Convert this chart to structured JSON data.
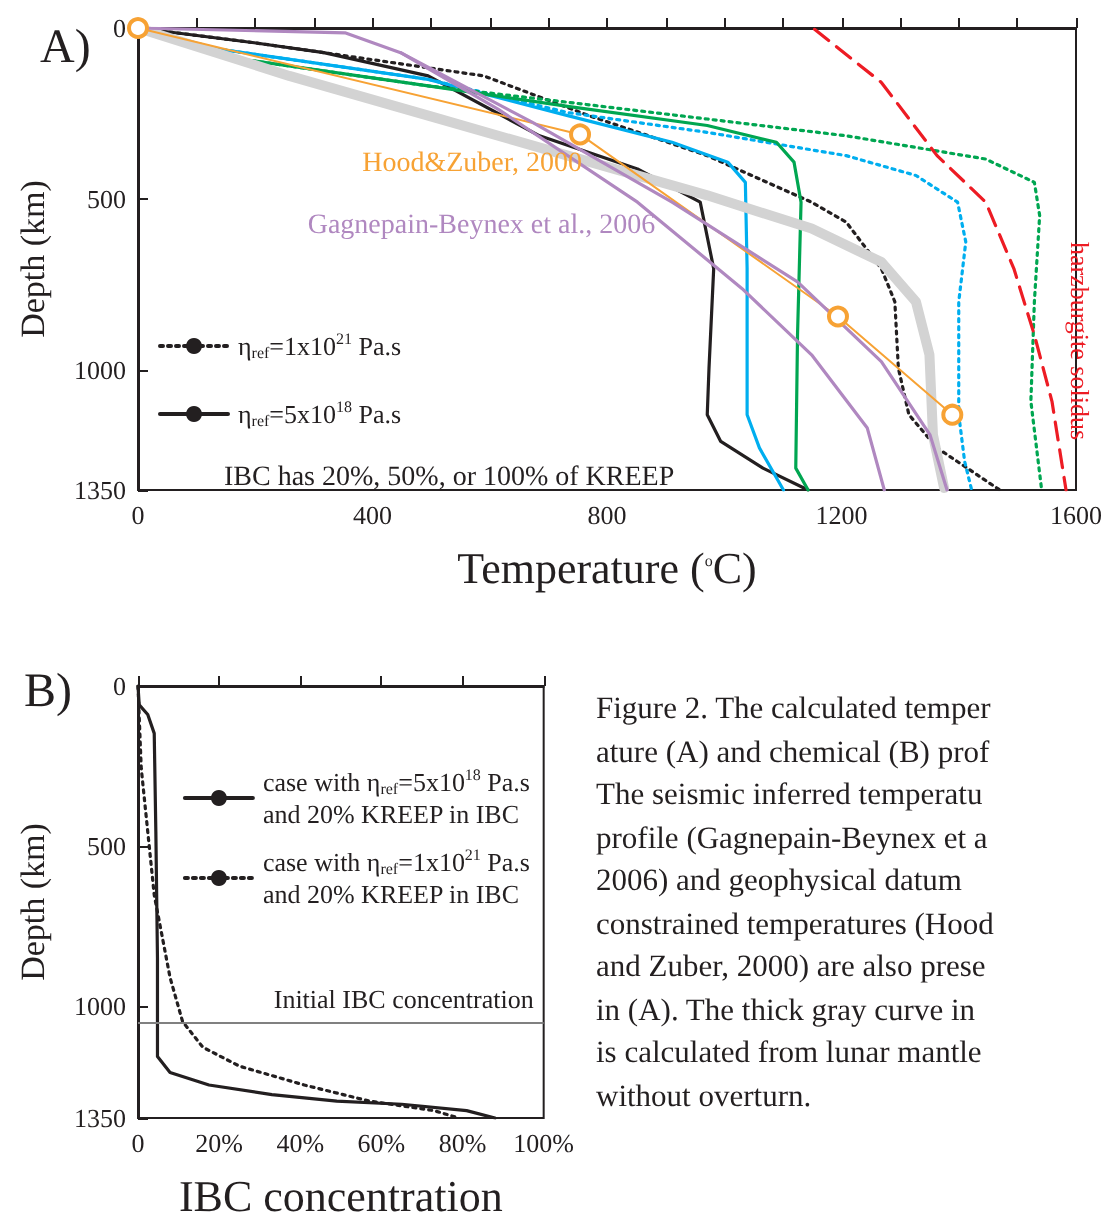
{
  "chart_data": [
    {
      "type": "line",
      "xlabel": "Temperature ($^{o}$C)",
      "ylabel": "Depth (km)",
      "xlim": [
        0,
        1600
      ],
      "ylim": [
        1350,
        0
      ],
      "xticks": [
        0,
        {
          "value": 100,
          "label": null
        },
        {
          "value": 200,
          "label": null
        },
        {
          "value": 300,
          "label": null
        },
        400,
        {
          "value": 500,
          "label": null
        },
        {
          "value": 600,
          "label": null
        },
        {
          "value": 700,
          "label": null
        },
        800,
        {
          "value": 900,
          "label": null
        },
        {
          "value": 1000,
          "label": null
        },
        {
          "value": 1100,
          "label": null
        },
        1200,
        {
          "value": 1300,
          "label": null
        },
        {
          "value": 1400,
          "label": null
        },
        {
          "value": 1500,
          "label": null
        },
        1600
      ],
      "yticks": [
        0,
        500,
        1000,
        1350
      ],
      "legend": "left",
      "marker": "none",
      "line_style": "solid",
      "annotations": [
        "A)",
        "IBC has 20%, 50%, or 100% of KREEP"
      ],
      "series": [
        {
          "name": "η$_{ref}$=1x10$^{21}$ Pa.s",
          "color": "#231f20",
          "line_style": "dotted",
          "x": [
            0,
            198,
            317,
            590,
            769,
            971,
            1149,
            1208,
            1268,
            1291,
            1297,
            1315,
            1363,
            1470
          ],
          "values": [
            0,
            43,
            72,
            140,
            256,
            373,
            509,
            567,
            703,
            800,
            994,
            1130,
            1227,
            1350
          ]
        },
        {
          "name": "η$_{ref}$=5x10$^{18}$ Pa.s",
          "color": "#231f20",
          "x": [
            0,
            198,
            317,
            495,
            685,
            852,
            959,
            982,
            974,
            971,
            994,
            1066,
            1143
          ],
          "values": [
            0,
            43,
            72,
            140,
            315,
            412,
            509,
            703,
            994,
            1130,
            1208,
            1286,
            1350
          ]
        },
        {
          "color": "#00aeef",
          "x": [
            0,
            139,
            495,
            733,
            911,
            1006,
            1036,
            1039,
            1039,
            1060,
            1101
          ],
          "values": [
            0,
            62,
            150,
            256,
            334,
            392,
            451,
            703,
            1130,
            1227,
            1350
          ]
        },
        {
          "color": "#00aeef",
          "line_style": "dotted",
          "x": [
            0,
            139,
            495,
            733,
            971,
            1208,
            1327,
            1398,
            1412,
            1400,
            1400,
            1410,
            1422
          ],
          "values": [
            0,
            62,
            150,
            247,
            305,
            373,
            431,
            509,
            625,
            800,
            1130,
            1266,
            1350
          ]
        },
        {
          "color": "#00a651",
          "x": [
            0,
            139,
            495,
            733,
            971,
            1089,
            1119,
            1131,
            1125,
            1122,
            1143
          ],
          "values": [
            0,
            82,
            169,
            229,
            285,
            334,
            392,
            509,
            897,
            1286,
            1350
          ]
        },
        {
          "color": "#00a651",
          "line_style": "dotted",
          "x": [
            0,
            139,
            495,
            733,
            971,
            1208,
            1446,
            1529,
            1538,
            1529,
            1523,
            1541
          ],
          "values": [
            0,
            82,
            169,
            217,
            266,
            315,
            383,
            451,
            548,
            800,
            1091,
            1344
          ]
        },
        {
          "color": "#d3d3d3",
          "x": [
            0,
            258,
            495,
            733,
            971,
            1149,
            1268,
            1327,
            1350,
            1356,
            1375
          ],
          "values": [
            0,
            140,
            256,
            373,
            489,
            586,
            684,
            800,
            955,
            1189,
            1344
          ]
        },
        {
          "name": "Hood&Zuber, 2000",
          "color": "#f7a234",
          "marker": "circle",
          "x": [
            0,
            754,
            1194,
            1389
          ],
          "values": [
            0,
            311,
            843,
            1130
          ]
        },
        {
          "name": "Gagnepain-Beynex et al., 2006",
          "color": "#b088c0",
          "x": [
            0,
            353,
            448,
            614,
            852,
            1030,
            1149,
            1244,
            1273
          ],
          "values": [
            0,
            14,
            72,
            237,
            509,
            761,
            955,
            1169,
            1350
          ]
        },
        {
          "color": "#b088c0",
          "x": [
            448,
            673,
            911,
            1125,
            1268,
            1351,
            1380
          ],
          "values": [
            72,
            276,
            509,
            742,
            975,
            1189,
            1350
          ]
        },
        {
          "name": "harzburgite solidus",
          "color": "#ed1c24",
          "line_style": "dashed",
          "x": [
            1154,
            1268,
            1363,
            1446,
            1494,
            1529,
            1559,
            1583
          ],
          "values": [
            4,
            159,
            373,
            509,
            703,
            897,
            1091,
            1350
          ]
        }
      ]
    },
    {
      "type": "line",
      "xlabel": "IBC concentration",
      "ylabel": "Depth (km)",
      "xlim": [
        0,
        100
      ],
      "ylim": [
        1350,
        0
      ],
      "xticks": [
        {
          "value": 0,
          "label": "0"
        },
        {
          "value": 20,
          "label": "20%"
        },
        {
          "value": 40,
          "label": "40%"
        },
        {
          "value": 60,
          "label": "60%"
        },
        {
          "value": 80,
          "label": "80%"
        },
        {
          "value": 100,
          "label": "100%"
        }
      ],
      "yticks": [
        0,
        500,
        1000,
        1350
      ],
      "legend": "top right",
      "marker": "none",
      "line_style": "solid",
      "annotations": [
        "B)"
      ],
      "ref_lines": [
        {
          "axis": "y",
          "value": 1050,
          "label": "Initial IBC concentration",
          "color": "#808080"
        }
      ],
      "series": [
        {
          "name": "case with η$_{ref}$=5x10$^{18}$ Pa.s\nand 20% KREEP in IBC",
          "color": "#231f20",
          "x": [
            0,
            0.3,
            2.4,
            4,
            4.4,
            4.8,
            4.8,
            7.9,
            17.5,
            33,
            49,
            65,
            81,
            88
          ],
          "values": [
            0,
            59,
            89,
            148,
            455,
            851,
            1158,
            1208,
            1247,
            1277,
            1297,
            1307,
            1327,
            1350
          ]
        },
        {
          "name": "case with η$_{ref}$=1x10$^{21}$ Pa.s\nand 20% KREEP in IBC",
          "color": "#231f20",
          "line_style": "dotted",
          "x": [
            0,
            0.8,
            4,
            7.9,
            11,
            16,
            25,
            41,
            57,
            73,
            79
          ],
          "values": [
            0,
            257,
            653,
            911,
            1049,
            1129,
            1188,
            1247,
            1297,
            1327,
            1350
          ]
        }
      ]
    },
    {
      "type": "other",
      "annotations": [
        "Figure 2. The calculated temper",
        "ature (A) and chemical (B) prof",
        "The seismic inferred temperatu",
        "profile (Gagnepain-Beynex et a",
        "2006) and geophysical datum",
        "constrained temperatures (Hood",
        "and Zuber, 2000) are also prese",
        "in (A). The thick gray curve in",
        "is calculated from lunar mantle",
        "without overturn."
      ]
    }
  ]
}
